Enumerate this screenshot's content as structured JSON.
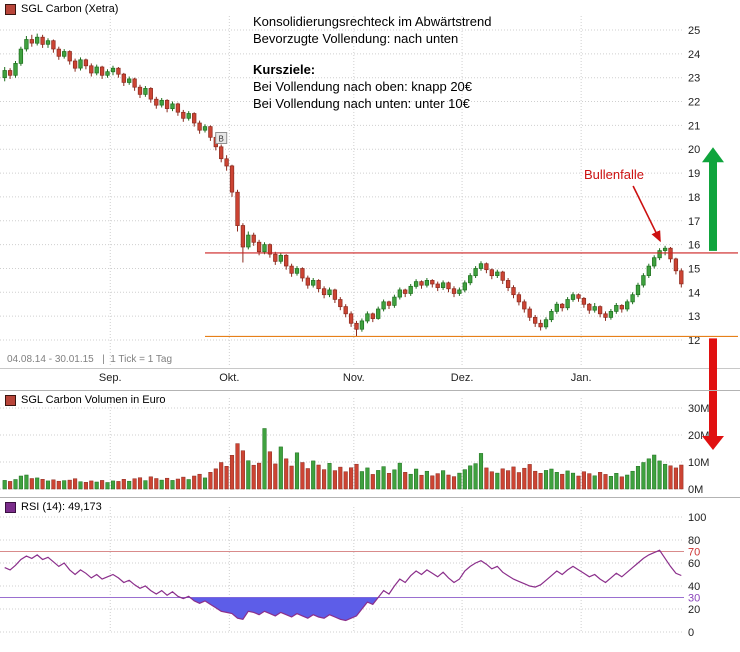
{
  "panels": {
    "main": {
      "legend": "SGL Carbon (Xetra)",
      "legend_color": "#b8453a",
      "date_note": "04.08.14 - 30.01.15   |  1 Tick = 1 Tag",
      "annotation": {
        "line1": "Konsolidierungsrechteck im Abwärtstrend",
        "line2": "Bevorzugte Vollendung: nach unten",
        "heading": "Kursziele:",
        "line3": "Bei Vollendung nach oben: knapp 20€",
        "line4": "Bei Vollendung nach unten: unter 10€"
      },
      "bull_trap_label": "Bullenfalle",
      "b_marker": "B"
    },
    "volume": {
      "legend": "SGL Carbon Volumen in Euro",
      "legend_color": "#b8453a"
    },
    "rsi": {
      "legend": "RSI (14): 49,173",
      "legend_color": "#7b2d8b"
    }
  },
  "colors": {
    "up": "#3fa13f",
    "upStroke": "#1d6f1d",
    "down": "#cc4433",
    "downStroke": "#8b2a1e",
    "resistance": "#cc2222",
    "support": "#e6801a",
    "rsiLine": "#8b2f8b",
    "rsiFill": "#5d5de8",
    "arrowUp": "#0fa43c",
    "arrowDown": "#e01010",
    "bullTrap": "#cc1111"
  },
  "chart_data": [
    {
      "type": "candlestick",
      "title": "SGL Carbon (Xetra)",
      "period": "04.08.14 - 30.01.15",
      "interval": "1 Tick = 1 Tag",
      "y_ticks": [
        25,
        24,
        23,
        22,
        21,
        20,
        19,
        18,
        17,
        16,
        15,
        14,
        13,
        12
      ],
      "month_labels": [
        {
          "label": "Sep.",
          "index": 20
        },
        {
          "label": "Okt.",
          "index": 42
        },
        {
          "label": "Nov.",
          "index": 65
        },
        {
          "label": "Dez.",
          "index": 85
        },
        {
          "label": "Jan.",
          "index": 107
        }
      ],
      "resistance": 15.65,
      "support": 12.15,
      "target_up_price": 20,
      "target_down_price": 10,
      "b_marker_index": 40,
      "bull_trap_index": 122,
      "candles": [
        [
          23.0,
          23.45,
          22.85,
          23.3
        ],
        [
          23.3,
          23.4,
          22.95,
          23.1
        ],
        [
          23.1,
          23.7,
          23.0,
          23.6
        ],
        [
          23.6,
          24.3,
          23.5,
          24.2
        ],
        [
          24.2,
          24.75,
          24.1,
          24.6
        ],
        [
          24.6,
          24.8,
          24.3,
          24.45
        ],
        [
          24.45,
          24.85,
          24.35,
          24.7
        ],
        [
          24.7,
          24.8,
          24.25,
          24.4
        ],
        [
          24.4,
          24.65,
          24.25,
          24.55
        ],
        [
          24.55,
          24.6,
          24.05,
          24.2
        ],
        [
          24.2,
          24.3,
          23.75,
          23.9
        ],
        [
          23.9,
          24.2,
          23.8,
          24.1
        ],
        [
          24.1,
          24.15,
          23.55,
          23.7
        ],
        [
          23.7,
          23.8,
          23.25,
          23.4
        ],
        [
          23.4,
          23.85,
          23.3,
          23.75
        ],
        [
          23.75,
          23.8,
          23.35,
          23.5
        ],
        [
          23.5,
          23.6,
          23.05,
          23.2
        ],
        [
          23.2,
          23.55,
          23.1,
          23.45
        ],
        [
          23.45,
          23.5,
          22.95,
          23.1
        ],
        [
          23.1,
          23.35,
          23.0,
          23.25
        ],
        [
          23.25,
          23.5,
          23.1,
          23.4
        ],
        [
          23.4,
          23.45,
          23.0,
          23.15
        ],
        [
          23.15,
          23.2,
          22.65,
          22.8
        ],
        [
          22.8,
          23.05,
          22.7,
          22.95
        ],
        [
          22.95,
          23.0,
          22.45,
          22.6
        ],
        [
          22.6,
          22.7,
          22.15,
          22.3
        ],
        [
          22.3,
          22.65,
          22.2,
          22.55
        ],
        [
          22.55,
          22.6,
          21.95,
          22.1
        ],
        [
          22.1,
          22.2,
          21.7,
          21.85
        ],
        [
          21.85,
          22.15,
          21.75,
          22.05
        ],
        [
          22.05,
          22.1,
          21.55,
          21.7
        ],
        [
          21.7,
          22.0,
          21.6,
          21.9
        ],
        [
          21.9,
          21.95,
          21.4,
          21.55
        ],
        [
          21.55,
          21.65,
          21.15,
          21.3
        ],
        [
          21.3,
          21.6,
          21.2,
          21.5
        ],
        [
          21.5,
          21.55,
          20.95,
          21.1
        ],
        [
          21.1,
          21.2,
          20.65,
          20.8
        ],
        [
          20.8,
          21.05,
          20.7,
          20.95
        ],
        [
          20.95,
          21.0,
          20.35,
          20.5
        ],
        [
          20.5,
          20.6,
          19.95,
          20.1
        ],
        [
          20.1,
          20.2,
          19.45,
          19.6
        ],
        [
          19.6,
          19.75,
          19.1,
          19.3
        ],
        [
          19.3,
          19.35,
          18.0,
          18.2
        ],
        [
          18.2,
          18.3,
          16.55,
          16.8
        ],
        [
          16.8,
          16.9,
          15.25,
          15.9
        ],
        [
          15.9,
          16.55,
          15.8,
          16.4
        ],
        [
          16.4,
          16.5,
          15.95,
          16.1
        ],
        [
          16.1,
          16.2,
          15.55,
          15.7
        ],
        [
          15.7,
          16.1,
          15.6,
          16.0
        ],
        [
          16.0,
          16.05,
          15.45,
          15.6
        ],
        [
          15.6,
          15.7,
          15.15,
          15.3
        ],
        [
          15.3,
          15.65,
          15.2,
          15.55
        ],
        [
          15.55,
          15.6,
          14.95,
          15.1
        ],
        [
          15.1,
          15.2,
          14.65,
          14.8
        ],
        [
          14.8,
          15.1,
          14.7,
          15.0
        ],
        [
          15.0,
          15.05,
          14.45,
          14.6
        ],
        [
          14.6,
          14.7,
          14.15,
          14.3
        ],
        [
          14.3,
          14.6,
          14.2,
          14.5
        ],
        [
          14.5,
          14.55,
          14.0,
          14.15
        ],
        [
          14.15,
          14.25,
          13.75,
          13.9
        ],
        [
          13.9,
          14.2,
          13.8,
          14.1
        ],
        [
          14.1,
          14.15,
          13.55,
          13.7
        ],
        [
          13.7,
          13.8,
          13.25,
          13.4
        ],
        [
          13.4,
          13.5,
          12.95,
          13.1
        ],
        [
          13.1,
          13.2,
          12.55,
          12.7
        ],
        [
          12.7,
          12.8,
          12.15,
          12.45
        ],
        [
          12.45,
          12.9,
          12.35,
          12.8
        ],
        [
          12.8,
          13.2,
          12.7,
          13.1
        ],
        [
          13.1,
          13.15,
          12.75,
          12.9
        ],
        [
          12.9,
          13.4,
          12.85,
          13.3
        ],
        [
          13.3,
          13.7,
          13.2,
          13.6
        ],
        [
          13.6,
          13.65,
          13.3,
          13.45
        ],
        [
          13.45,
          13.9,
          13.35,
          13.8
        ],
        [
          13.8,
          14.2,
          13.7,
          14.1
        ],
        [
          14.1,
          14.15,
          13.8,
          13.95
        ],
        [
          13.95,
          14.35,
          13.85,
          14.25
        ],
        [
          14.25,
          14.55,
          14.15,
          14.45
        ],
        [
          14.45,
          14.5,
          14.15,
          14.3
        ],
        [
          14.3,
          14.6,
          14.2,
          14.5
        ],
        [
          14.5,
          14.55,
          14.2,
          14.35
        ],
        [
          14.35,
          14.45,
          14.05,
          14.2
        ],
        [
          14.2,
          14.5,
          14.1,
          14.4
        ],
        [
          14.4,
          14.45,
          14.0,
          14.15
        ],
        [
          14.15,
          14.25,
          13.8,
          13.95
        ],
        [
          13.95,
          14.2,
          13.85,
          14.1
        ],
        [
          14.1,
          14.5,
          14.0,
          14.4
        ],
        [
          14.4,
          14.8,
          14.3,
          14.7
        ],
        [
          14.7,
          15.1,
          14.6,
          15.0
        ],
        [
          15.0,
          15.3,
          14.9,
          15.2
        ],
        [
          15.2,
          15.25,
          14.8,
          14.95
        ],
        [
          14.95,
          15.0,
          14.55,
          14.7
        ],
        [
          14.7,
          14.95,
          14.6,
          14.85
        ],
        [
          14.85,
          14.9,
          14.35,
          14.5
        ],
        [
          14.5,
          14.6,
          14.05,
          14.2
        ],
        [
          14.2,
          14.3,
          13.75,
          13.9
        ],
        [
          13.9,
          14.0,
          13.45,
          13.6
        ],
        [
          13.6,
          13.7,
          13.15,
          13.3
        ],
        [
          13.3,
          13.4,
          12.8,
          12.95
        ],
        [
          12.95,
          13.05,
          12.55,
          12.7
        ],
        [
          12.7,
          12.85,
          12.4,
          12.55
        ],
        [
          12.55,
          12.95,
          12.45,
          12.85
        ],
        [
          12.85,
          13.3,
          12.75,
          13.2
        ],
        [
          13.2,
          13.6,
          13.1,
          13.5
        ],
        [
          13.5,
          13.55,
          13.2,
          13.35
        ],
        [
          13.35,
          13.8,
          13.25,
          13.7
        ],
        [
          13.7,
          14.0,
          13.6,
          13.9
        ],
        [
          13.9,
          13.95,
          13.6,
          13.75
        ],
        [
          13.75,
          13.8,
          13.35,
          13.5
        ],
        [
          13.5,
          13.55,
          13.1,
          13.25
        ],
        [
          13.25,
          13.55,
          13.15,
          13.4
        ],
        [
          13.4,
          13.45,
          12.95,
          13.1
        ],
        [
          13.1,
          13.2,
          12.8,
          12.95
        ],
        [
          12.95,
          13.3,
          12.85,
          13.2
        ],
        [
          13.2,
          13.55,
          13.1,
          13.45
        ],
        [
          13.45,
          13.5,
          13.15,
          13.3
        ],
        [
          13.3,
          13.7,
          13.2,
          13.6
        ],
        [
          13.6,
          14.0,
          13.5,
          13.9
        ],
        [
          13.9,
          14.4,
          13.8,
          14.3
        ],
        [
          14.3,
          14.8,
          14.2,
          14.7
        ],
        [
          14.7,
          15.2,
          14.6,
          15.1
        ],
        [
          15.1,
          15.55,
          15.0,
          15.45
        ],
        [
          15.45,
          15.85,
          15.35,
          15.75
        ],
        [
          15.75,
          15.95,
          15.55,
          15.85
        ],
        [
          15.85,
          15.9,
          15.25,
          15.4
        ],
        [
          15.4,
          15.45,
          14.75,
          14.9
        ],
        [
          14.9,
          15.0,
          14.2,
          14.35
        ]
      ]
    },
    {
      "type": "bar",
      "title": "SGL Carbon Volumen in Euro",
      "unit": "M",
      "y_ticks": [
        30,
        20,
        10,
        0
      ],
      "values": [
        3.2,
        2.8,
        3.5,
        4.8,
        5.2,
        3.9,
        4.1,
        3.6,
        3.0,
        3.4,
        2.9,
        3.1,
        3.3,
        3.8,
        2.7,
        2.5,
        3.0,
        2.6,
        3.2,
        2.4,
        3.0,
        2.8,
        3.6,
        2.9,
        3.8,
        4.2,
        3.1,
        4.5,
        3.9,
        3.3,
        4.0,
        3.2,
        3.7,
        4.4,
        3.5,
        4.8,
        5.5,
        4.1,
        6.2,
        7.5,
        9.8,
        8.4,
        12.5,
        16.8,
        14.2,
        10.5,
        8.8,
        9.6,
        22.4,
        13.8,
        9.3,
        15.6,
        11.2,
        8.5,
        13.4,
        9.8,
        7.6,
        10.4,
        8.9,
        7.2,
        9.5,
        6.8,
        8.1,
        6.4,
        7.9,
        9.2,
        6.5,
        7.8,
        5.4,
        6.9,
        8.3,
        5.8,
        7.1,
        9.6,
        6.2,
        5.5,
        7.4,
        5.1,
        6.6,
        4.9,
        5.7,
        6.8,
        5.2,
        4.6,
        5.9,
        7.2,
        8.6,
        9.4,
        13.2,
        7.8,
        6.4,
        5.9,
        7.5,
        6.8,
        8.2,
        6.1,
        7.7,
        9.1,
        6.6,
        5.8,
        6.9,
        7.4,
        6.2,
        5.5,
        6.7,
        5.9,
        4.8,
        6.4,
        5.7,
        4.9,
        6.2,
        5.4,
        4.7,
        5.8,
        4.5,
        5.2,
        6.6,
        8.4,
        9.8,
        11.2,
        12.6,
        10.4,
        9.2,
        8.6,
        7.8,
        8.9
      ]
    },
    {
      "type": "line",
      "title": "RSI (14)",
      "last_value": 49.173,
      "y_ticks": [
        100,
        80,
        70,
        60,
        40,
        30,
        20,
        0
      ],
      "overbought": 70,
      "oversold": 30,
      "values": [
        56,
        54,
        58,
        63,
        66,
        64,
        67,
        63,
        65,
        61,
        57,
        60,
        54,
        50,
        54,
        51,
        47,
        50,
        46,
        48,
        50,
        47,
        43,
        45,
        41,
        38,
        40,
        36,
        33,
        36,
        32,
        35,
        31,
        29,
        31,
        27,
        25,
        27,
        24,
        21,
        18,
        17,
        16,
        12,
        11,
        18,
        17,
        15,
        18,
        16,
        14,
        17,
        15,
        13,
        16,
        14,
        12,
        15,
        13,
        12,
        15,
        13,
        11,
        10,
        12,
        14,
        20,
        26,
        24,
        30,
        36,
        33,
        40,
        46,
        43,
        49,
        53,
        50,
        54,
        51,
        48,
        52,
        47,
        43,
        46,
        53,
        57,
        60,
        62,
        59,
        55,
        57,
        52,
        49,
        46,
        44,
        42,
        40,
        39,
        41,
        45,
        49,
        53,
        50,
        54,
        57,
        54,
        51,
        48,
        50,
        46,
        43,
        47,
        51,
        48,
        52,
        56,
        60,
        64,
        67,
        69,
        71,
        64,
        57,
        51,
        49.17
      ]
    }
  ]
}
